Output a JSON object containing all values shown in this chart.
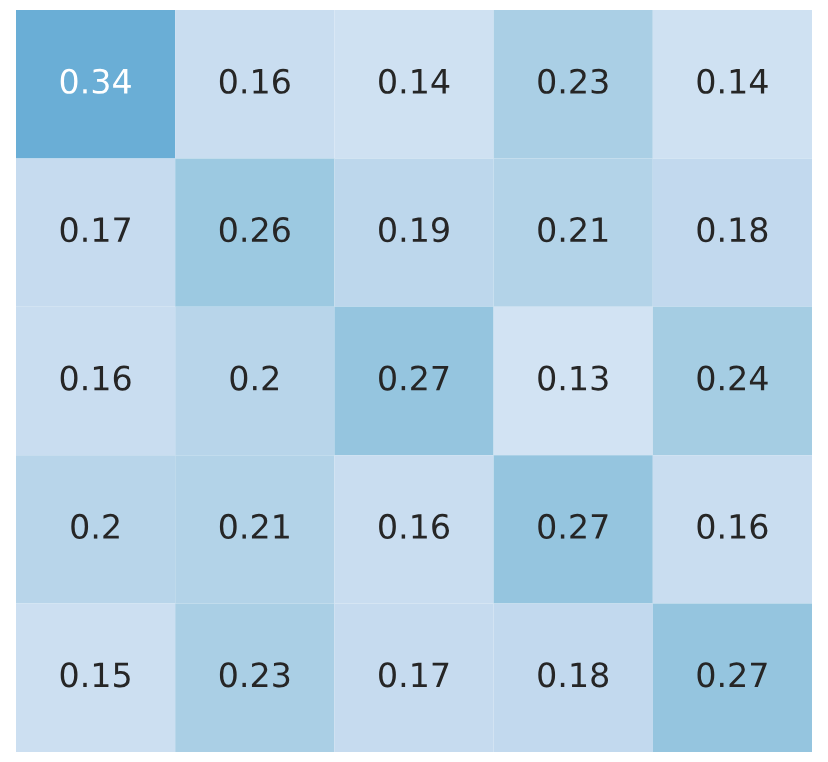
{
  "chart_data": {
    "type": "heatmap",
    "categories": [
      null,
      null,
      null,
      null,
      null
    ],
    "y_categories": [
      null,
      null,
      null,
      null,
      null
    ],
    "cells": [
      [
        0.34,
        0.16,
        0.14,
        0.23,
        0.14
      ],
      [
        0.17,
        0.26,
        0.19,
        0.21,
        0.18
      ],
      [
        0.16,
        0.2,
        0.27,
        0.13,
        0.24
      ],
      [
        0.2,
        0.21,
        0.16,
        0.27,
        0.16
      ],
      [
        0.15,
        0.23,
        0.17,
        0.18,
        0.27
      ]
    ],
    "data_labels": true
  }
}
